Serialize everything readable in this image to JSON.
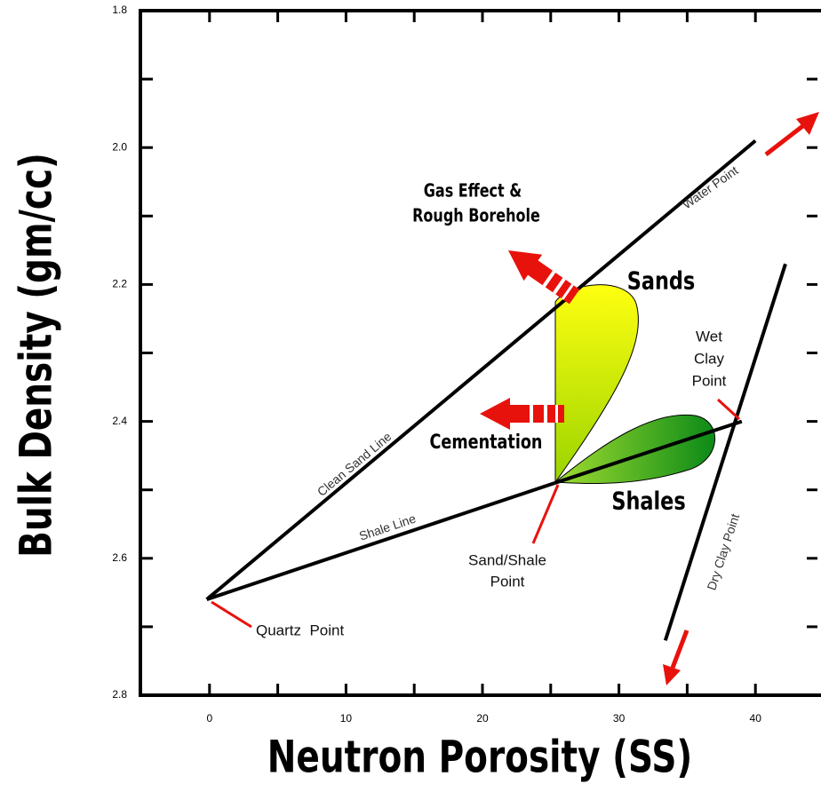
{
  "chart_data": {
    "type": "crossplot",
    "x_label": "Neutron Porosity (SS)",
    "y_label": "Bulk Density (gm/cc)",
    "xlim": [
      -5,
      45
    ],
    "ylim": [
      1.8,
      2.8
    ],
    "xticks": [
      0,
      10,
      20,
      30,
      40
    ],
    "xminorticks": [
      5,
      15,
      25,
      35
    ],
    "yticks": [
      1.8,
      {
        "value": 2,
        "label": "2.0"
      },
      2.2,
      2.4,
      2.6,
      2.8
    ],
    "yminorticks": [
      1.9,
      2.1,
      2.3,
      2.5,
      2.7
    ],
    "y_inverted": true,
    "line_color": "#000000",
    "lines": [
      {
        "name": "Clean Sand Line",
        "x": [
          -0.2,
          40
        ],
        "y": [
          2.66,
          1.99
        ]
      },
      {
        "name": "Shale Line",
        "x": [
          -0.2,
          25.3
        ],
        "y": [
          2.66,
          2.49
        ]
      },
      {
        "x": [
          25.3,
          39
        ],
        "y": [
          2.49,
          2.4
        ]
      },
      {
        "x": [
          33.4,
          42.2
        ],
        "y": [
          2.72,
          2.17
        ]
      }
    ],
    "annotations": [
      "Water Point",
      "Gas Effect &",
      "Rough Borehole",
      "Sands",
      "Wet",
      "Clay",
      "Point",
      "Cementation",
      "Shales",
      "Dry Clay Point",
      "Sand/Shale",
      "Point",
      "Quartz  Point"
    ]
  }
}
